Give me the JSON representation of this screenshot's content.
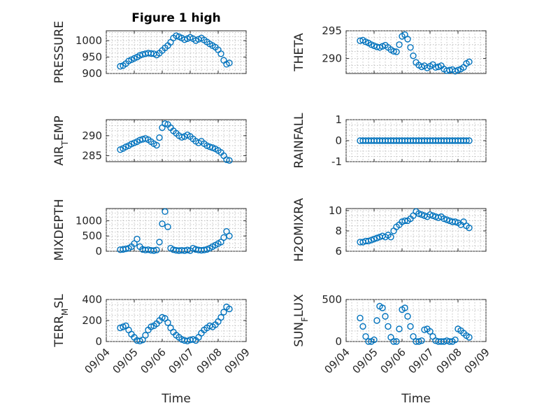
{
  "figure": {
    "title": "Figure 1 high",
    "marker_color": "#0072BD",
    "xlabel": "Time"
  },
  "chart_data": [
    {
      "type": "scatter",
      "name": "PRESSURE",
      "ylabel": "PRESSURE",
      "ylabel_segments": [
        {
          "t": "PRESSURE"
        }
      ],
      "xlim": [
        0,
        5
      ],
      "ylim": [
        900,
        1030
      ],
      "yticks": [
        900,
        950,
        1000
      ],
      "ytick_labels": [
        "900",
        "950",
        "1000"
      ],
      "xticks": [
        0,
        1,
        2,
        3,
        4,
        5
      ],
      "xtick_labels": [],
      "grid": true,
      "x": [
        0.5,
        0.6,
        0.7,
        0.8,
        0.9,
        1.0,
        1.1,
        1.2,
        1.3,
        1.4,
        1.5,
        1.6,
        1.7,
        1.8,
        1.9,
        2.0,
        2.1,
        2.2,
        2.3,
        2.4,
        2.5,
        2.6,
        2.7,
        2.8,
        2.9,
        3.0,
        3.1,
        3.2,
        3.3,
        3.4,
        3.5,
        3.6,
        3.7,
        3.8,
        3.9,
        4.0,
        4.1,
        4.2,
        4.3,
        4.4
      ],
      "y": [
        922,
        924,
        930,
        938,
        942,
        946,
        950,
        955,
        958,
        960,
        962,
        961,
        960,
        956,
        962,
        970,
        978,
        985,
        995,
        1008,
        1015,
        1012,
        1008,
        1003,
        1006,
        1010,
        1006,
        1000,
        1004,
        1008,
        1002,
        996,
        990,
        985,
        980,
        972,
        960,
        940,
        928,
        932
      ]
    },
    {
      "type": "scatter",
      "name": "THETA",
      "ylabel": "THETA",
      "ylabel_segments": [
        {
          "t": "THETA"
        }
      ],
      "xlim": [
        0,
        5
      ],
      "ylim": [
        287.3,
        295
      ],
      "yticks": [
        290,
        295
      ],
      "ytick_labels": [
        "290",
        "295"
      ],
      "xticks": [
        0,
        1,
        2,
        3,
        4,
        5
      ],
      "xtick_labels": [],
      "grid": true,
      "x": [
        0.5,
        0.6,
        0.7,
        0.8,
        0.9,
        1.0,
        1.1,
        1.2,
        1.3,
        1.4,
        1.5,
        1.6,
        1.7,
        1.8,
        1.9,
        2.0,
        2.1,
        2.2,
        2.3,
        2.4,
        2.5,
        2.6,
        2.7,
        2.8,
        2.9,
        3.0,
        3.1,
        3.2,
        3.3,
        3.4,
        3.5,
        3.6,
        3.7,
        3.8,
        3.9,
        4.0,
        4.1,
        4.2,
        4.3,
        4.4
      ],
      "y": [
        293.2,
        293.3,
        293.0,
        292.8,
        292.5,
        292.3,
        292.1,
        292.0,
        292.2,
        292.4,
        292.0,
        291.6,
        291.3,
        291.2,
        292.5,
        294.0,
        294.3,
        293.5,
        292.0,
        290.5,
        289.3,
        288.8,
        288.5,
        288.7,
        288.3,
        288.6,
        288.9,
        288.4,
        288.5,
        288.7,
        288.1,
        287.8,
        287.9,
        288.0,
        287.7,
        287.9,
        288.1,
        288.4,
        289.1,
        289.4
      ]
    },
    {
      "type": "scatter",
      "name": "AIR_TEMP",
      "ylabel": "AIR_TEMP",
      "ylabel_segments": [
        {
          "t": "AIR"
        },
        {
          "t": "T",
          "sub": true
        },
        {
          "t": "EMP"
        }
      ],
      "xlim": [
        0,
        5
      ],
      "ylim": [
        283.5,
        294
      ],
      "yticks": [
        285,
        290
      ],
      "ytick_labels": [
        "285",
        "290"
      ],
      "xticks": [
        0,
        1,
        2,
        3,
        4,
        5
      ],
      "xtick_labels": [],
      "grid": true,
      "x": [
        0.5,
        0.6,
        0.7,
        0.8,
        0.9,
        1.0,
        1.1,
        1.2,
        1.3,
        1.4,
        1.5,
        1.6,
        1.7,
        1.8,
        1.9,
        2.0,
        2.1,
        2.2,
        2.3,
        2.4,
        2.5,
        2.6,
        2.7,
        2.8,
        2.9,
        3.0,
        3.1,
        3.2,
        3.3,
        3.4,
        3.5,
        3.6,
        3.7,
        3.8,
        3.9,
        4.0,
        4.1,
        4.2,
        4.3,
        4.4
      ],
      "y": [
        286.5,
        286.8,
        287.2,
        287.5,
        287.9,
        288.2,
        288.5,
        288.9,
        289.1,
        289.3,
        289.0,
        288.5,
        288.0,
        287.6,
        289.5,
        292.0,
        293.0,
        292.8,
        292.0,
        291.2,
        290.6,
        290.0,
        289.6,
        289.8,
        290.2,
        289.8,
        289.2,
        288.6,
        288.2,
        288.6,
        288.0,
        287.5,
        287.2,
        287.0,
        286.7,
        286.3,
        285.8,
        285.0,
        284.0,
        283.8
      ]
    },
    {
      "type": "scatter",
      "name": "RAINFALL",
      "ylabel": "RAINFALL",
      "ylabel_segments": [
        {
          "t": "RAINFALL"
        }
      ],
      "xlim": [
        0,
        5
      ],
      "ylim": [
        -1,
        1
      ],
      "yticks": [
        -1,
        0,
        1
      ],
      "ytick_labels": [
        "-1",
        "0",
        "1"
      ],
      "xticks": [
        0,
        1,
        2,
        3,
        4,
        5
      ],
      "xtick_labels": [],
      "grid": true,
      "x": [
        0.5,
        0.6,
        0.7,
        0.8,
        0.9,
        1.0,
        1.1,
        1.2,
        1.3,
        1.4,
        1.5,
        1.6,
        1.7,
        1.8,
        1.9,
        2.0,
        2.1,
        2.2,
        2.3,
        2.4,
        2.5,
        2.6,
        2.7,
        2.8,
        2.9,
        3.0,
        3.1,
        3.2,
        3.3,
        3.4,
        3.5,
        3.6,
        3.7,
        3.8,
        3.9,
        4.0,
        4.1,
        4.2,
        4.3,
        4.4
      ],
      "y": [
        0,
        0,
        0,
        0,
        0,
        0,
        0,
        0,
        0,
        0,
        0,
        0,
        0,
        0,
        0,
        0,
        0,
        0,
        0,
        0,
        0,
        0,
        0,
        0,
        0,
        0,
        0,
        0,
        0,
        0,
        0,
        0,
        0,
        0,
        0,
        0,
        0,
        0,
        0,
        0
      ]
    },
    {
      "type": "scatter",
      "name": "MIXDEPTH",
      "ylabel": "MIXDEPTH",
      "ylabel_segments": [
        {
          "t": "MIXDEPTH"
        }
      ],
      "xlim": [
        0,
        5
      ],
      "ylim": [
        0,
        1400
      ],
      "yticks": [
        0,
        500,
        1000
      ],
      "ytick_labels": [
        "0",
        "500",
        "1000"
      ],
      "xticks": [
        0,
        1,
        2,
        3,
        4,
        5
      ],
      "xtick_labels": [],
      "grid": true,
      "x": [
        0.5,
        0.6,
        0.7,
        0.8,
        0.9,
        1.0,
        1.1,
        1.2,
        1.3,
        1.4,
        1.5,
        1.6,
        1.7,
        1.8,
        1.9,
        2.0,
        2.1,
        2.2,
        2.3,
        2.4,
        2.5,
        2.6,
        2.7,
        2.8,
        2.9,
        3.0,
        3.1,
        3.2,
        3.3,
        3.4,
        3.5,
        3.6,
        3.7,
        3.8,
        3.9,
        4.0,
        4.1,
        4.2,
        4.3,
        4.4
      ],
      "y": [
        50,
        60,
        80,
        100,
        150,
        250,
        400,
        150,
        60,
        40,
        50,
        30,
        20,
        40,
        300,
        900,
        1300,
        800,
        100,
        50,
        30,
        20,
        30,
        20,
        40,
        20,
        100,
        60,
        40,
        30,
        40,
        60,
        100,
        150,
        200,
        250,
        300,
        450,
        650,
        500
      ]
    },
    {
      "type": "scatter",
      "name": "H2OMIXRA",
      "ylabel": "H2OMIXRA",
      "ylabel_segments": [
        {
          "t": "H2OMIXRA"
        }
      ],
      "xlim": [
        0,
        5
      ],
      "ylim": [
        6,
        10.2
      ],
      "yticks": [
        6,
        8,
        10
      ],
      "ytick_labels": [
        "6",
        "8",
        "10"
      ],
      "xticks": [
        0,
        1,
        2,
        3,
        4,
        5
      ],
      "xtick_labels": [],
      "grid": true,
      "x": [
        0.5,
        0.6,
        0.7,
        0.8,
        0.9,
        1.0,
        1.1,
        1.2,
        1.3,
        1.4,
        1.5,
        1.6,
        1.7,
        1.8,
        1.9,
        2.0,
        2.1,
        2.2,
        2.3,
        2.4,
        2.5,
        2.6,
        2.7,
        2.8,
        2.9,
        3.0,
        3.1,
        3.2,
        3.3,
        3.4,
        3.5,
        3.6,
        3.7,
        3.8,
        3.9,
        4.0,
        4.1,
        4.2,
        4.3,
        4.4
      ],
      "y": [
        6.9,
        6.9,
        7.0,
        7.0,
        7.1,
        7.2,
        7.3,
        7.4,
        7.5,
        7.4,
        7.6,
        7.4,
        8.0,
        8.4,
        8.6,
        8.9,
        9.0,
        9.0,
        9.2,
        9.5,
        9.9,
        9.7,
        9.6,
        9.5,
        9.4,
        9.6,
        9.5,
        9.4,
        9.3,
        9.4,
        9.2,
        9.1,
        9.0,
        8.9,
        8.9,
        8.8,
        8.6,
        8.9,
        8.5,
        8.3
      ]
    },
    {
      "type": "scatter",
      "name": "TERR_MSL",
      "ylabel": "TERR_MSL",
      "ylabel_segments": [
        {
          "t": "TERR"
        },
        {
          "t": "M",
          "sub": true
        },
        {
          "t": "SL"
        }
      ],
      "xlim": [
        0,
        5
      ],
      "ylim": [
        0,
        400
      ],
      "yticks": [
        0,
        200,
        400
      ],
      "ytick_labels": [
        "0",
        "200",
        "400"
      ],
      "xticks": [
        0,
        1,
        2,
        3,
        4,
        5
      ],
      "xtick_labels": [
        "09/04",
        "09/05",
        "09/06",
        "09/07",
        "09/08",
        "09/09"
      ],
      "grid": true,
      "x": [
        0.5,
        0.6,
        0.7,
        0.8,
        0.9,
        1.0,
        1.1,
        1.2,
        1.3,
        1.4,
        1.5,
        1.6,
        1.7,
        1.8,
        1.9,
        2.0,
        2.1,
        2.2,
        2.3,
        2.4,
        2.5,
        2.6,
        2.7,
        2.8,
        2.9,
        3.0,
        3.1,
        3.2,
        3.3,
        3.4,
        3.5,
        3.6,
        3.7,
        3.8,
        3.9,
        4.0,
        4.1,
        4.2,
        4.3,
        4.4
      ],
      "y": [
        130,
        140,
        150,
        110,
        70,
        40,
        10,
        5,
        15,
        60,
        110,
        140,
        150,
        170,
        200,
        230,
        220,
        180,
        130,
        90,
        60,
        40,
        20,
        10,
        5,
        15,
        20,
        10,
        40,
        80,
        110,
        130,
        150,
        140,
        160,
        190,
        230,
        280,
        330,
        310
      ]
    },
    {
      "type": "scatter",
      "name": "SUN_FLUX",
      "ylabel": "SUN_FLUX",
      "ylabel_segments": [
        {
          "t": "SUN"
        },
        {
          "t": "F",
          "sub": true
        },
        {
          "t": "LUX"
        }
      ],
      "xlim": [
        0,
        5
      ],
      "ylim": [
        0,
        500
      ],
      "yticks": [
        0,
        500
      ],
      "ytick_labels": [
        "0",
        "500"
      ],
      "xticks": [
        0,
        1,
        2,
        3,
        4,
        5
      ],
      "xtick_labels": [
        "09/04",
        "09/05",
        "09/06",
        "09/07",
        "09/08",
        "09/09"
      ],
      "grid": true,
      "x": [
        0.5,
        0.6,
        0.7,
        0.8,
        0.9,
        1.0,
        1.1,
        1.2,
        1.3,
        1.4,
        1.5,
        1.6,
        1.7,
        1.8,
        1.9,
        2.0,
        2.1,
        2.2,
        2.3,
        2.4,
        2.5,
        2.6,
        2.7,
        2.8,
        2.9,
        3.0,
        3.1,
        3.2,
        3.3,
        3.4,
        3.5,
        3.6,
        3.7,
        3.8,
        3.9,
        4.0,
        4.1,
        4.2,
        4.3,
        4.4
      ],
      "y": [
        280,
        180,
        60,
        0,
        0,
        20,
        250,
        420,
        400,
        300,
        180,
        50,
        0,
        0,
        150,
        380,
        400,
        300,
        180,
        60,
        0,
        0,
        10,
        140,
        150,
        120,
        60,
        10,
        0,
        0,
        0,
        10,
        0,
        0,
        20,
        150,
        130,
        100,
        70,
        50
      ]
    }
  ]
}
